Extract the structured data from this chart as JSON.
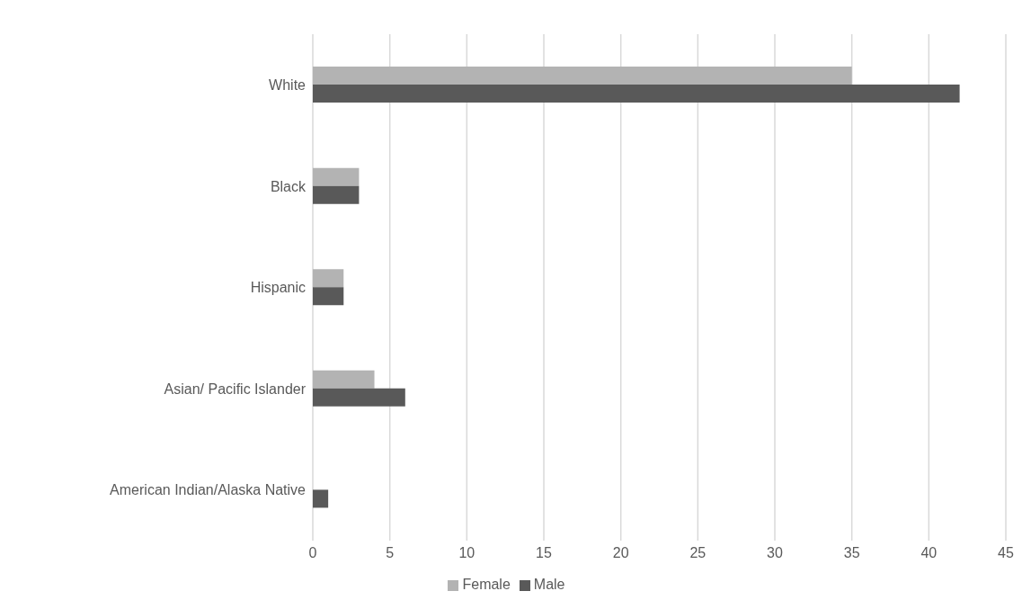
{
  "chart_data": {
    "type": "bar",
    "orientation": "horizontal",
    "categories": [
      "White",
      "Black",
      "Hispanic",
      "Asian/ Pacific Islander",
      "American Indian/Alaska Native"
    ],
    "series": [
      {
        "name": "Female",
        "color": "#b3b3b3",
        "values": [
          35,
          3,
          2,
          4,
          0
        ]
      },
      {
        "name": "Male",
        "color": "#595959",
        "values": [
          42,
          3,
          2,
          6,
          1
        ]
      }
    ],
    "xlim": [
      0,
      45
    ],
    "xticks": [
      0,
      5,
      10,
      15,
      20,
      25,
      30,
      35,
      40,
      45
    ],
    "grid": "x",
    "legend": "bottom"
  }
}
